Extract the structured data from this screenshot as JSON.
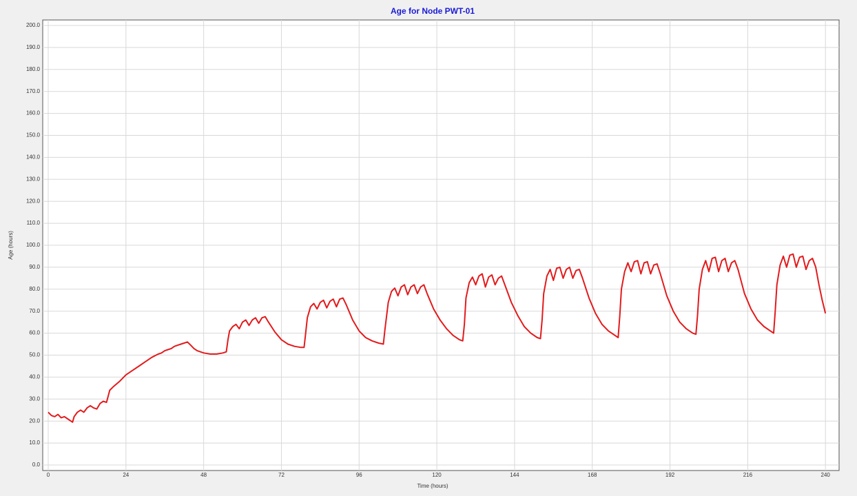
{
  "chart_data": {
    "type": "line",
    "title": "Age for Node PWT-01",
    "x_label": "Time (hours)",
    "y_label": "Age (hours)",
    "color": "#e31a1c",
    "grid": true,
    "xlim": [
      0,
      244
    ],
    "ylim": [
      0,
      200
    ],
    "xticks": [
      0,
      24,
      48,
      72,
      96,
      120,
      144,
      168,
      192,
      216,
      240
    ],
    "yticks": [
      {
        "value": 0,
        "label": "0.0"
      },
      {
        "value": 10,
        "label": "10.0"
      },
      {
        "value": 20,
        "label": "20.0"
      },
      {
        "value": 30,
        "label": "30.0"
      },
      {
        "value": 40,
        "label": "40.0"
      },
      {
        "value": 50,
        "label": "50.0"
      },
      {
        "value": 60,
        "label": "60.0"
      },
      {
        "value": 70,
        "label": "70.0"
      },
      {
        "value": 80,
        "label": "80.0"
      },
      {
        "value": 90,
        "label": "90.0"
      },
      {
        "value": 100,
        "label": "100.0"
      },
      {
        "value": 110,
        "label": "110.0"
      },
      {
        "value": 120,
        "label": "120.0"
      },
      {
        "value": 130,
        "label": "130.0"
      },
      {
        "value": 140,
        "label": "140.0"
      },
      {
        "value": 150,
        "label": "150.0"
      },
      {
        "value": 160,
        "label": "160.0"
      },
      {
        "value": 170,
        "label": "170.0"
      },
      {
        "value": 180,
        "label": "180.0"
      },
      {
        "value": 190,
        "label": "190.0"
      },
      {
        "value": 200,
        "label": "200.0"
      }
    ],
    "x": [
      0,
      1,
      2,
      3,
      4,
      5,
      6,
      7,
      7.5,
      8,
      9,
      10,
      11,
      12,
      13,
      14,
      15,
      16,
      17,
      18,
      19,
      20,
      22,
      24,
      26,
      28,
      30,
      32,
      34,
      35,
      36,
      37,
      38,
      39,
      40,
      41,
      42,
      43,
      44,
      45,
      46,
      48,
      50,
      52,
      54,
      55,
      55.5,
      56,
      57,
      58,
      59,
      60,
      61,
      62,
      63,
      64,
      65,
      66,
      67,
      68,
      70,
      72,
      74,
      76,
      78,
      79,
      79.5,
      80,
      81,
      82,
      83,
      84,
      85,
      86,
      87,
      88,
      89,
      90,
      91,
      92,
      94,
      96,
      98,
      100,
      102,
      103.5,
      104,
      105,
      106,
      107,
      108,
      109,
      110,
      111,
      112,
      113,
      114,
      115,
      116,
      117,
      119,
      121,
      123,
      125,
      127,
      128,
      128.5,
      129,
      130,
      131,
      132,
      133,
      134,
      135,
      136,
      137,
      138,
      139,
      140,
      141,
      143,
      145,
      147,
      149,
      151,
      152,
      152.5,
      153,
      154,
      155,
      156,
      157,
      158,
      159,
      160,
      161,
      162,
      163,
      164,
      165,
      167,
      169,
      171,
      173,
      175,
      176,
      176.5,
      177,
      178,
      179,
      180,
      181,
      182,
      183,
      184,
      185,
      186,
      187,
      188,
      189,
      191,
      193,
      195,
      197,
      199,
      200,
      200.5,
      201,
      202,
      203,
      204,
      205,
      206,
      207,
      208,
      209,
      210,
      211,
      212,
      213,
      215,
      217,
      219,
      221,
      223,
      224,
      224.5,
      225,
      226,
      227,
      228,
      229,
      230,
      231,
      232,
      233,
      234,
      235,
      236,
      237,
      238,
      239,
      240
    ],
    "values": [
      24,
      22.5,
      22,
      23,
      21.5,
      22,
      21,
      20,
      19.5,
      22,
      24,
      25,
      24,
      26,
      27,
      26,
      25.5,
      28,
      29,
      28.5,
      34,
      35.5,
      38,
      41,
      43,
      45,
      47,
      49,
      50.5,
      51,
      52,
      52.5,
      53,
      54,
      54.5,
      55,
      55.5,
      56,
      54.5,
      53,
      52,
      51,
      50.5,
      50.5,
      51,
      51.5,
      57,
      61,
      63,
      64,
      62,
      65,
      66,
      63.5,
      66,
      67,
      64.5,
      67,
      67.5,
      65,
      60.5,
      57,
      55,
      54,
      53.5,
      53.5,
      60,
      67,
      72,
      73.5,
      71,
      74,
      75,
      71.5,
      74.5,
      75.5,
      72,
      75.5,
      76,
      73,
      66,
      61,
      58,
      56.5,
      55.5,
      55,
      62,
      74,
      79,
      80.5,
      77,
      81,
      82,
      77.5,
      81,
      82,
      78,
      81,
      82,
      78,
      71,
      66,
      62,
      59,
      57,
      56.5,
      64,
      76,
      83,
      85.5,
      82,
      86,
      87,
      81,
      85.5,
      86.5,
      82,
      85,
      86,
      82,
      74,
      68,
      63,
      60,
      58,
      57.5,
      66,
      78,
      86,
      89,
      84,
      89.5,
      90,
      85,
      89,
      90,
      85,
      88.5,
      89,
      85,
      76,
      69,
      64,
      61,
      59,
      58,
      68,
      80,
      88,
      92,
      88,
      92.5,
      93,
      87,
      92,
      92.5,
      87,
      91,
      91.5,
      87,
      77,
      70,
      65,
      62,
      60,
      59.5,
      68,
      80,
      89,
      93,
      88,
      94,
      94.5,
      88,
      93,
      94,
      88,
      92,
      93,
      89,
      78,
      71,
      66,
      63,
      61,
      60,
      70,
      82,
      91,
      95,
      90,
      95.5,
      96,
      90,
      94.5,
      95,
      89,
      93,
      94,
      90,
      82,
      75,
      69
    ]
  }
}
